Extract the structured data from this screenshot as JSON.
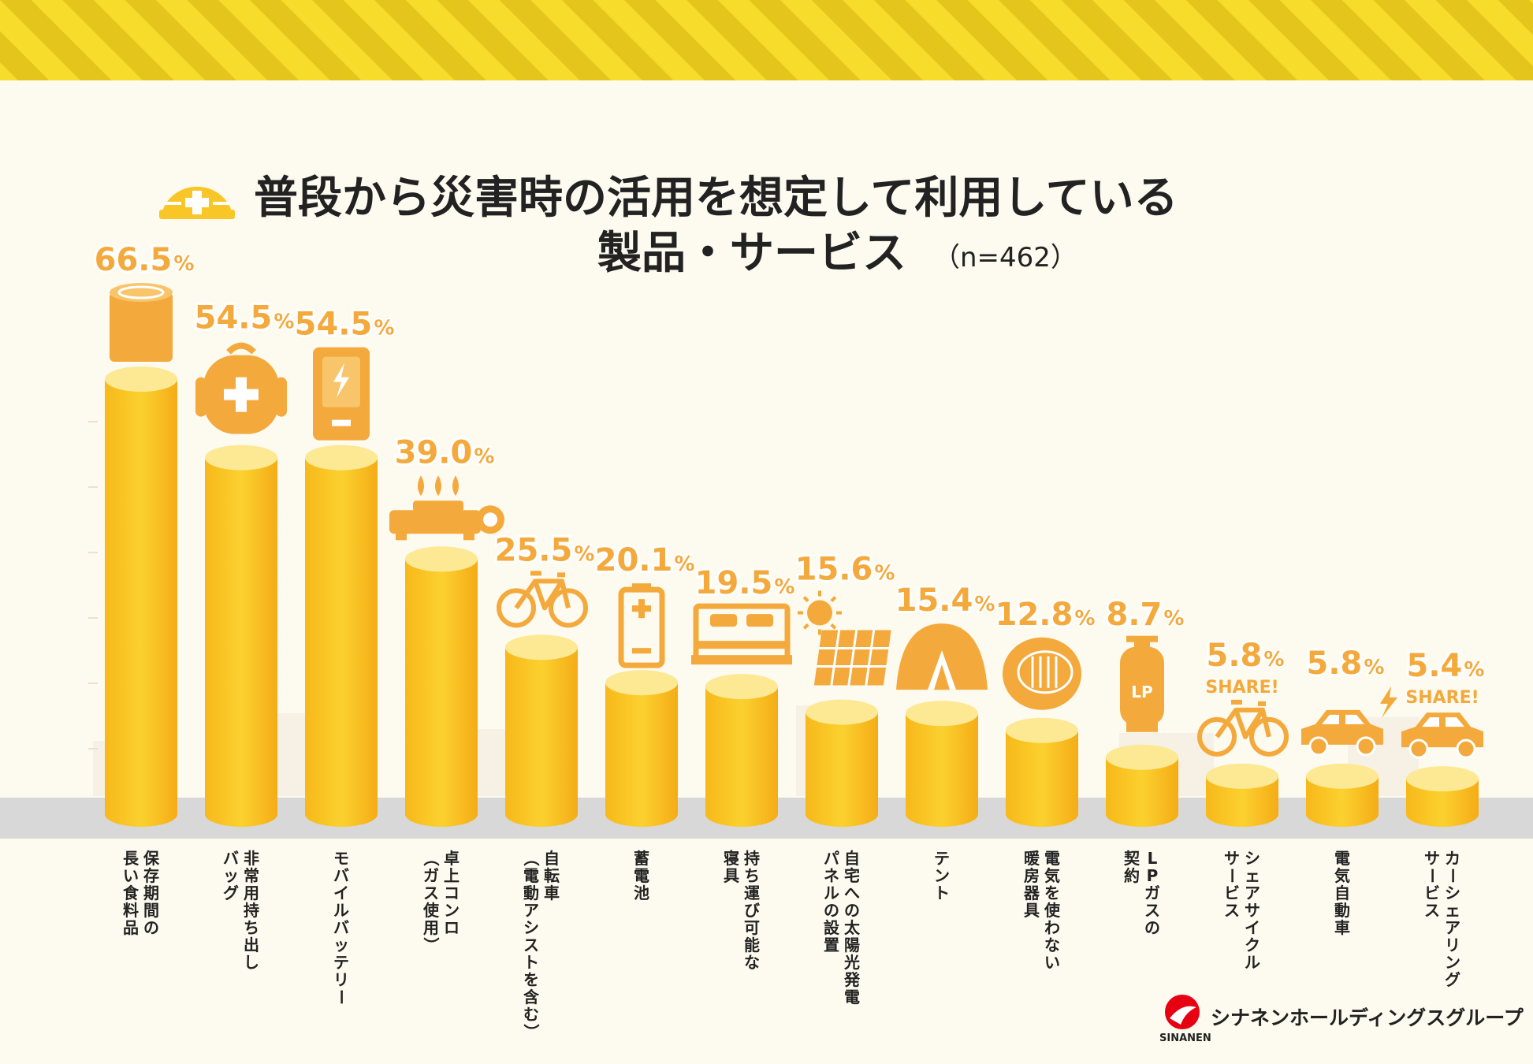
{
  "title": {
    "line1": "普段から災害時の活用を想定して利用している",
    "line2": "製品・サービス",
    "sample": "（n=462）"
  },
  "chart_data": {
    "type": "bar",
    "title": "普段から災害時の活用を想定して利用している製品・サービス（n=462）",
    "unit": "%",
    "ylim": [
      0,
      70
    ],
    "categories": [
      [
        "保存期間の",
        "長い食料品"
      ],
      [
        "非常用持ち出し",
        "バッグ"
      ],
      [
        "モバイルバッテリー"
      ],
      [
        "卓上コンロ",
        "（ガス使用）"
      ],
      [
        "自転車",
        "（電動アシストを含む）"
      ],
      [
        "蓄電池"
      ],
      [
        "持ち運び可能な",
        "寝具"
      ],
      [
        "自宅への太陽光発電",
        "パネルの設置"
      ],
      [
        "テント"
      ],
      [
        "電気を使わない",
        "暖房器具"
      ],
      [
        "LPガスの",
        "契約"
      ],
      [
        "シェアサイクル",
        "サービス"
      ],
      [
        "電気自動車"
      ],
      [
        "カーシェアリング",
        "サービス"
      ]
    ],
    "values": [
      66.5,
      54.5,
      54.5,
      39.0,
      25.5,
      20.1,
      19.5,
      15.6,
      15.4,
      12.8,
      8.7,
      5.8,
      5.8,
      5.4
    ],
    "value_labels": [
      "66.5",
      "54.5",
      "54.5",
      "39.0",
      "25.5",
      "20.1",
      "19.5",
      "15.6",
      "15.4",
      "12.8",
      "8.7",
      "5.8",
      "5.8",
      "5.4"
    ],
    "percent_sign": "%",
    "icons": [
      "canned-food-icon",
      "emergency-backpack-icon",
      "mobile-battery-icon",
      "gas-stove-icon",
      "bicycle-icon",
      "storage-battery-icon",
      "bed-icon",
      "solar-panel-icon",
      "tent-icon",
      "heater-icon",
      "lp-gas-cylinder-icon",
      "share-bicycle-icon",
      "electric-car-icon",
      "share-car-icon"
    ],
    "share_tag": "SHARE!",
    "share_tag_items": [
      11,
      13
    ]
  },
  "logo": {
    "name": "シナネンホールディングスグループ",
    "mark_text": "SINANEN"
  },
  "colors": {
    "background": "#fdfaef",
    "stripe_yellow": "#f8dc2c",
    "stripe_dark": "#e3c51c",
    "bar": "#f9c628",
    "bar_top": "#fde993",
    "accent_orange": "#f4a93c",
    "floor": "#d8d8d8",
    "brand_red": "#e60012"
  }
}
